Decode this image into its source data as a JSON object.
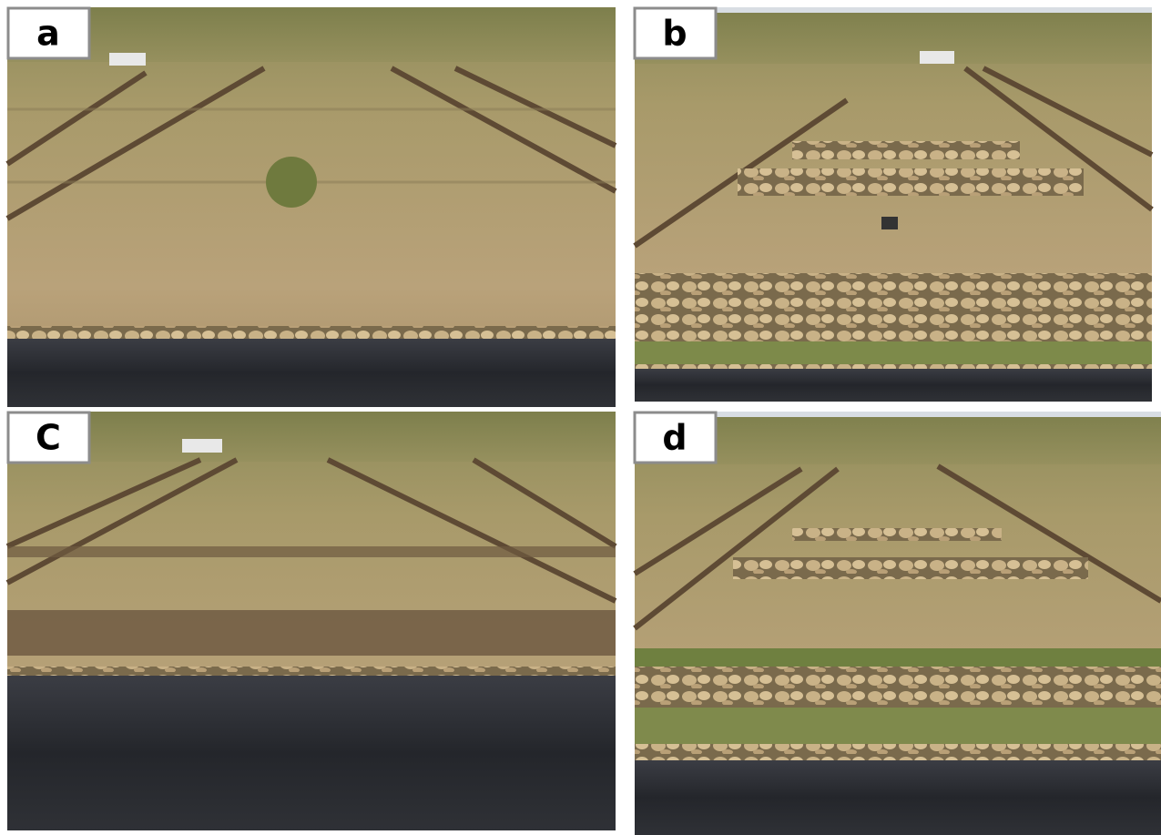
{
  "panels": [
    {
      "label": "a"
    },
    {
      "label": "b"
    },
    {
      "label": "C"
    },
    {
      "label": "d"
    }
  ]
}
